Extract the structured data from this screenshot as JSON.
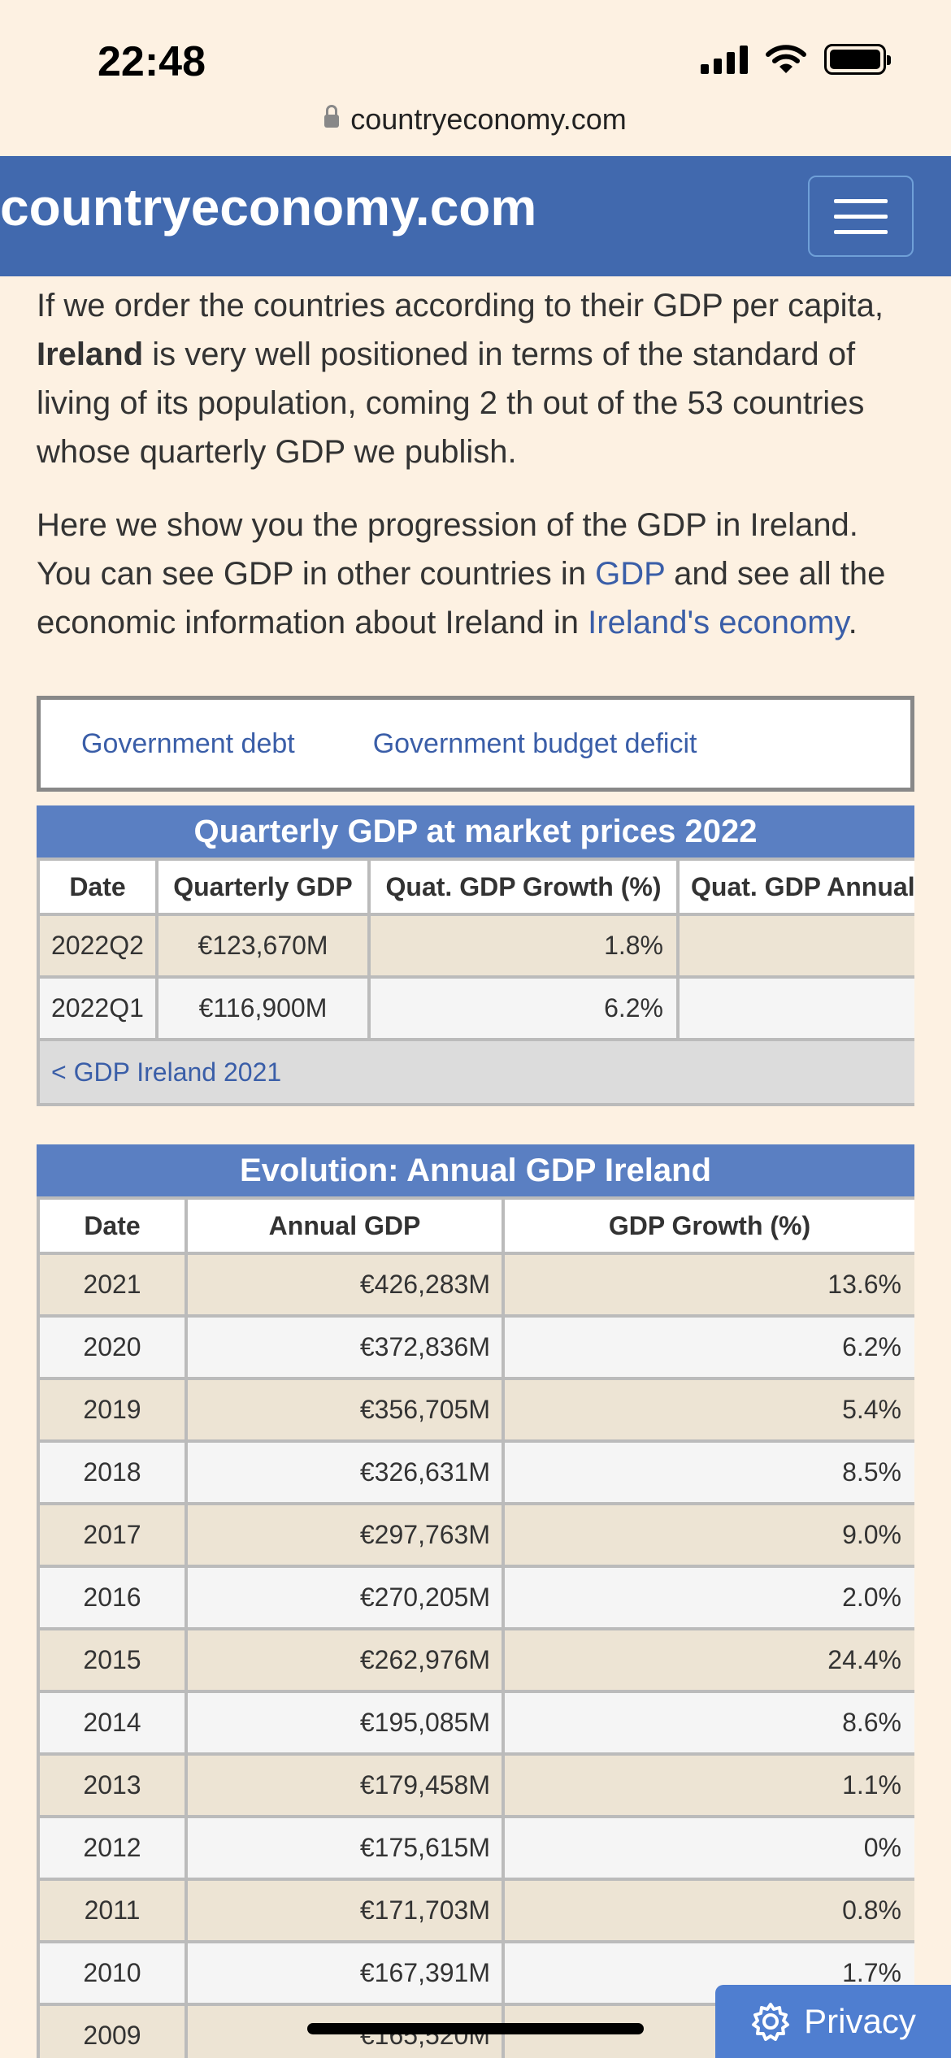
{
  "status_bar": {
    "time": "22:48"
  },
  "browser": {
    "url": "countryeconomy.com"
  },
  "header": {
    "title": "countryeconomy.com"
  },
  "intro": {
    "p1_before": "If we order the countries according to their GDP per capita, ",
    "p1_bold": "Ireland",
    "p1_after": " is very well positioned in terms of the standard of living of its population, coming 2 th out of the 53 countries whose quarterly GDP we publish.",
    "p2_before": "Here we show you the progression of the GDP in Ireland. You can see GDP in other countries in ",
    "p2_link1": "GDP",
    "p2_middle": " and see all the economic information about Ireland in ",
    "p2_link2": "Ireland's economy",
    "p2_after": "."
  },
  "links": {
    "debt": "Government debt",
    "deficit": "Government budget deficit"
  },
  "quarterly_table": {
    "caption": "Quarterly GDP at market prices 2022",
    "headers": [
      "Date",
      "Quarterly GDP",
      "Quat. GDP Growth (%)",
      "Quat. GDP Annual"
    ],
    "rows": [
      {
        "date": "2022Q2",
        "gdp": "€123,670M",
        "growth": "1.8%"
      },
      {
        "date": "2022Q1",
        "gdp": "€116,900M",
        "growth": "6.2%"
      }
    ],
    "nav_link": "< GDP Ireland 2021"
  },
  "annual_table": {
    "caption": "Evolution: Annual GDP Ireland",
    "headers": [
      "Date",
      "Annual GDP",
      "GDP Growth (%)"
    ],
    "rows": [
      {
        "year": "2021",
        "gdp": "€426,283M",
        "growth": "13.6%"
      },
      {
        "year": "2020",
        "gdp": "€372,836M",
        "growth": "6.2%"
      },
      {
        "year": "2019",
        "gdp": "€356,705M",
        "growth": "5.4%"
      },
      {
        "year": "2018",
        "gdp": "€326,631M",
        "growth": "8.5%"
      },
      {
        "year": "2017",
        "gdp": "€297,763M",
        "growth": "9.0%"
      },
      {
        "year": "2016",
        "gdp": "€270,205M",
        "growth": "2.0%"
      },
      {
        "year": "2015",
        "gdp": "€262,976M",
        "growth": "24.4%"
      },
      {
        "year": "2014",
        "gdp": "€195,085M",
        "growth": "8.6%"
      },
      {
        "year": "2013",
        "gdp": "€179,458M",
        "growth": "1.1%"
      },
      {
        "year": "2012",
        "gdp": "€175,615M",
        "growth": "0%"
      },
      {
        "year": "2011",
        "gdp": "€171,703M",
        "growth": "0.8%"
      },
      {
        "year": "2010",
        "gdp": "€167,391M",
        "growth": "1.7%"
      },
      {
        "year": "2009",
        "gdp": "€165,520M",
        "growth": ""
      }
    ]
  },
  "privacy": {
    "label": "Privacy"
  }
}
